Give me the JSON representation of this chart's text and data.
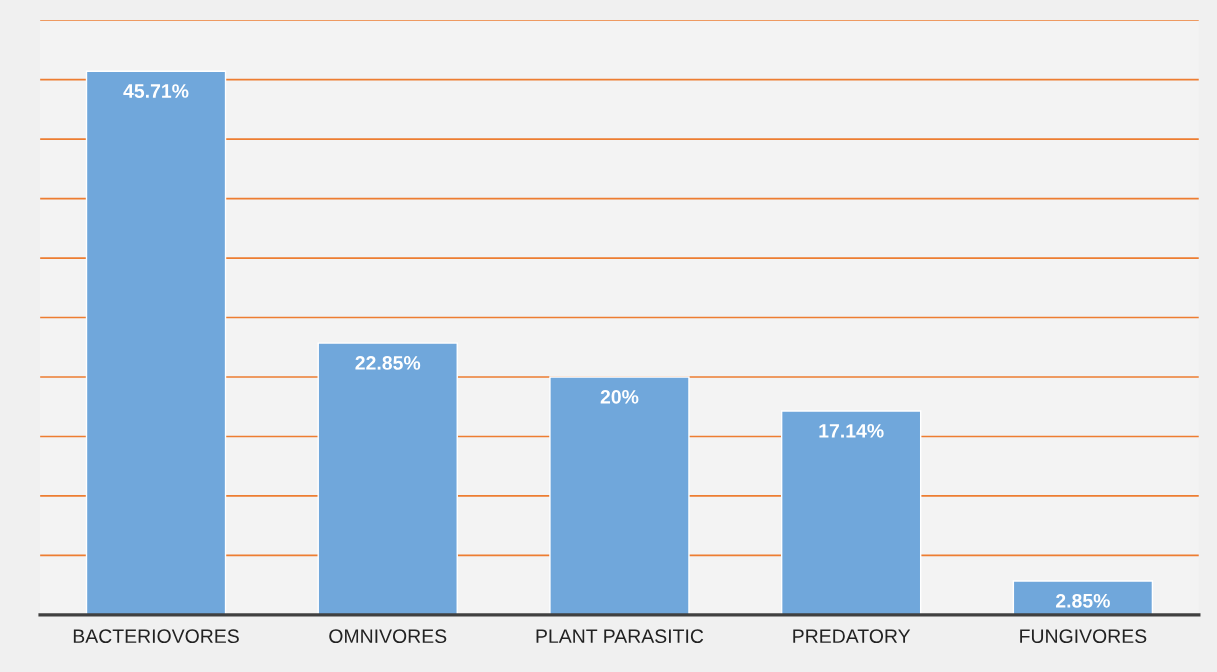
{
  "chart_data": {
    "type": "bar",
    "categories": [
      "BACTERIOVORES",
      "OMNIVORES",
      "PLANT PARASITIC",
      "PREDATORY",
      "FUNGIVORES"
    ],
    "values": [
      45.71,
      22.85,
      20,
      17.14,
      2.85
    ],
    "value_labels": [
      "45.71%",
      "22.85%",
      "20%",
      "17.14%",
      "2.85%"
    ],
    "color": "#70a7db",
    "ylim": [
      0,
      50
    ],
    "yticks": [
      {
        "value": 0,
        "label": null
      },
      {
        "value": 5,
        "label": null
      },
      {
        "value": 10,
        "label": null
      },
      {
        "value": 15,
        "label": null
      },
      {
        "value": 20,
        "label": null
      },
      {
        "value": 25,
        "label": null
      },
      {
        "value": 30,
        "label": null
      },
      {
        "value": 35,
        "label": null
      },
      {
        "value": 40,
        "label": null
      },
      {
        "value": 45,
        "label": null
      },
      {
        "value": 50,
        "label": null
      }
    ],
    "grid": "y",
    "tick_labels": "x"
  }
}
